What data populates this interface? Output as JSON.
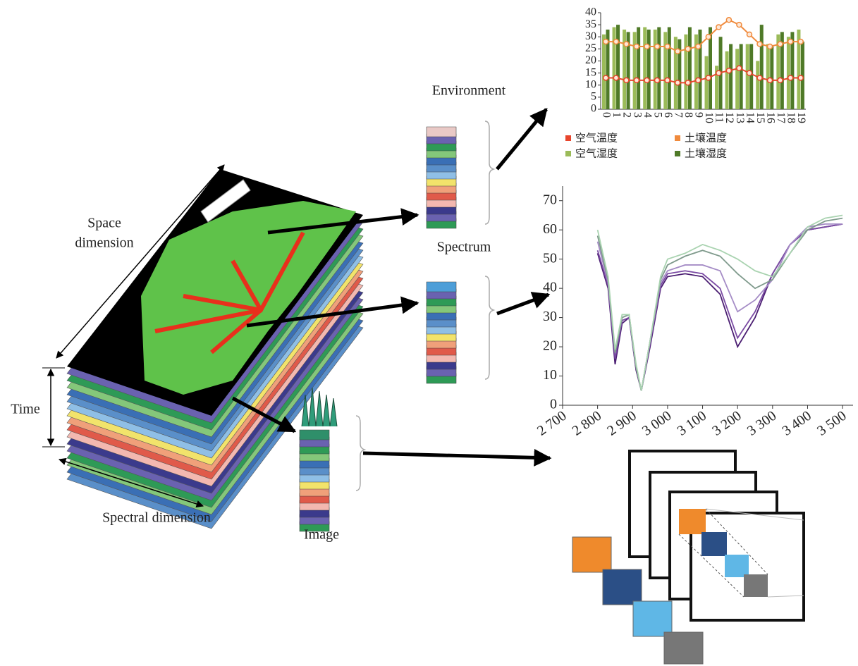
{
  "labels": {
    "space_dimension": [
      "Space",
      "dimension"
    ],
    "time": "Time",
    "spectral_dimension": "Spectral dimension",
    "environment": "Environment",
    "spectrum": "Spectrum",
    "image": "Image"
  },
  "chart_data": [
    {
      "type": "bar",
      "categories": [
        "0",
        "1",
        "2",
        "3",
        "4",
        "5",
        "6",
        "7",
        "8",
        "9",
        "10",
        "11",
        "12",
        "13",
        "14",
        "15",
        "16",
        "17",
        "18",
        "19"
      ],
      "ylim": [
        0,
        40
      ],
      "yticks": [
        0,
        5,
        10,
        15,
        20,
        25,
        30,
        35,
        40
      ],
      "series": [
        {
          "name": "空气温度",
          "type": "line",
          "color": "#e8452c",
          "values": [
            13,
            13,
            12,
            12,
            12,
            12,
            12,
            11,
            11,
            12,
            13,
            15,
            16,
            17,
            15,
            13,
            12,
            12,
            13,
            13
          ]
        },
        {
          "name": "土壤温度",
          "type": "line",
          "color": "#f08a3c",
          "values": [
            28,
            28,
            27,
            26,
            26,
            26,
            26,
            24,
            25,
            26,
            30,
            34,
            37,
            35,
            31,
            27,
            26,
            27,
            28,
            28
          ]
        },
        {
          "name": "空气湿度",
          "type": "bar",
          "color": "#9bbb59",
          "values": [
            31,
            34,
            33,
            32,
            34,
            33,
            32,
            30,
            31,
            31,
            22,
            18,
            24,
            25,
            27,
            20,
            27,
            31,
            30,
            33
          ]
        },
        {
          "name": "土壤湿度",
          "type": "bar",
          "color": "#4f7a28",
          "values": [
            33,
            35,
            32,
            34,
            33,
            34,
            34,
            29,
            34,
            33,
            34,
            30,
            27,
            27,
            27,
            35,
            26,
            32,
            32,
            28
          ]
        }
      ]
    },
    {
      "type": "line",
      "x": [
        2800,
        2830,
        2850,
        2870,
        2890,
        2910,
        2925,
        2950,
        2980,
        3000,
        3050,
        3100,
        3150,
        3200,
        3250,
        3300,
        3350,
        3400,
        3450,
        3500
      ],
      "xlim": [
        2700,
        3530
      ],
      "xticks": [
        {
          "value": 2700,
          "label": "2 700"
        },
        {
          "value": 2800,
          "label": "2 800"
        },
        {
          "value": 2900,
          "label": "2 900"
        },
        {
          "value": 3000,
          "label": "3 000"
        },
        {
          "value": 3100,
          "label": "3 100"
        },
        {
          "value": 3200,
          "label": "3 200"
        },
        {
          "value": 3300,
          "label": "3 300"
        },
        {
          "value": 3400,
          "label": "3 400"
        },
        {
          "value": 3500,
          "label": "3 500"
        }
      ],
      "ylim": [
        0,
        75
      ],
      "yticks": [
        0,
        10,
        20,
        30,
        40,
        50,
        60,
        70
      ],
      "series": [
        {
          "color": "#4b1e72",
          "values": [
            52,
            40,
            14,
            28,
            30,
            12,
            5,
            20,
            40,
            44,
            45,
            44,
            38,
            20,
            30,
            45,
            55,
            60,
            61,
            62
          ]
        },
        {
          "color": "#7a4aa3",
          "values": [
            53,
            41,
            16,
            29,
            30,
            13,
            5,
            21,
            41,
            45,
            46,
            45,
            40,
            23,
            32,
            45,
            55,
            60,
            61,
            62
          ]
        },
        {
          "color": "#a58cc6",
          "values": [
            56,
            42,
            18,
            30,
            31,
            13,
            5,
            22,
            42,
            46,
            48,
            48,
            46,
            32,
            36,
            43,
            55,
            61,
            62,
            62
          ]
        },
        {
          "color": "#7f9a8c",
          "values": [
            58,
            43,
            18,
            30,
            31,
            13,
            5,
            22,
            43,
            48,
            51,
            53,
            51,
            45,
            40,
            43,
            52,
            60,
            63,
            64
          ]
        },
        {
          "color": "#a9d3b0",
          "values": [
            60,
            44,
            19,
            31,
            31,
            14,
            5,
            22,
            44,
            50,
            52,
            55,
            53,
            50,
            46,
            44,
            52,
            61,
            64,
            65
          ]
        }
      ]
    }
  ]
}
